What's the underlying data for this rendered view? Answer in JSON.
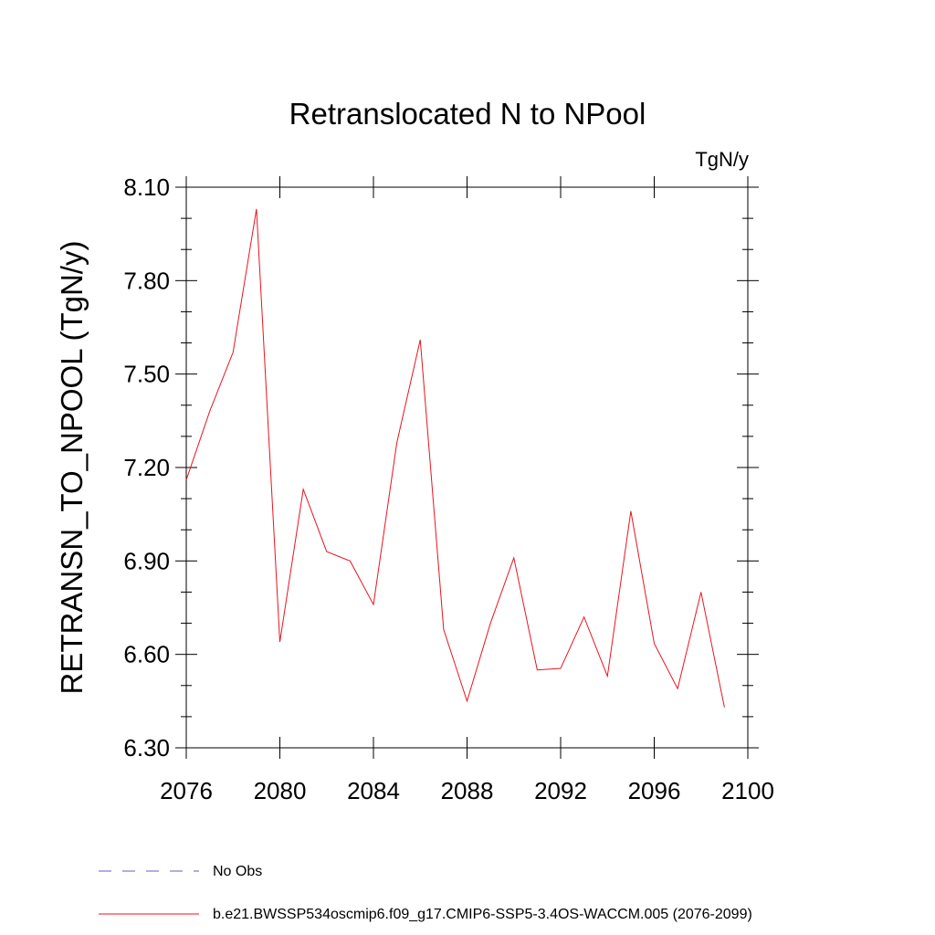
{
  "chart_data": {
    "type": "line",
    "title": "Retranslocated N to NPool",
    "units_label": "TgN/y",
    "ylabel": "RETRANSN_TO_NPOOL  (TgN/y)",
    "xlabel": "",
    "xlim": [
      2076,
      2100
    ],
    "ylim": [
      6.3,
      8.1
    ],
    "x_ticks": [
      2076,
      2080,
      2084,
      2088,
      2092,
      2096,
      2100
    ],
    "y_ticks": [
      "6.30",
      "6.60",
      "6.90",
      "7.20",
      "7.50",
      "7.80",
      "8.10"
    ],
    "grid": false,
    "series": [
      {
        "name": "b.e21.BWSSP534oscmip6.f09_g17.CMIP6-SSP5-3.4OS-WACCM.005 (2076-2099)",
        "color": "#e8141e",
        "x": [
          2076,
          2077,
          2078,
          2079,
          2080,
          2081,
          2082,
          2083,
          2084,
          2085,
          2086,
          2087,
          2088,
          2089,
          2090,
          2091,
          2092,
          2093,
          2094,
          2095,
          2096,
          2097,
          2098,
          2099
        ],
        "values": [
          7.16,
          7.38,
          7.57,
          8.03,
          6.64,
          7.13,
          6.93,
          6.9,
          6.76,
          7.28,
          7.61,
          6.68,
          6.45,
          6.7,
          6.91,
          6.55,
          6.555,
          6.72,
          6.53,
          7.06,
          6.635,
          6.49,
          6.8,
          6.43
        ]
      }
    ],
    "legend": [
      {
        "label": "No Obs",
        "color": "#6a5acd",
        "style": "dashed"
      },
      {
        "label": "b.e21.BWSSP534oscmip6.f09_g17.CMIP6-SSP5-3.4OS-WACCM.005 (2076-2099)",
        "color": "#e8141e",
        "style": "solid"
      }
    ]
  }
}
